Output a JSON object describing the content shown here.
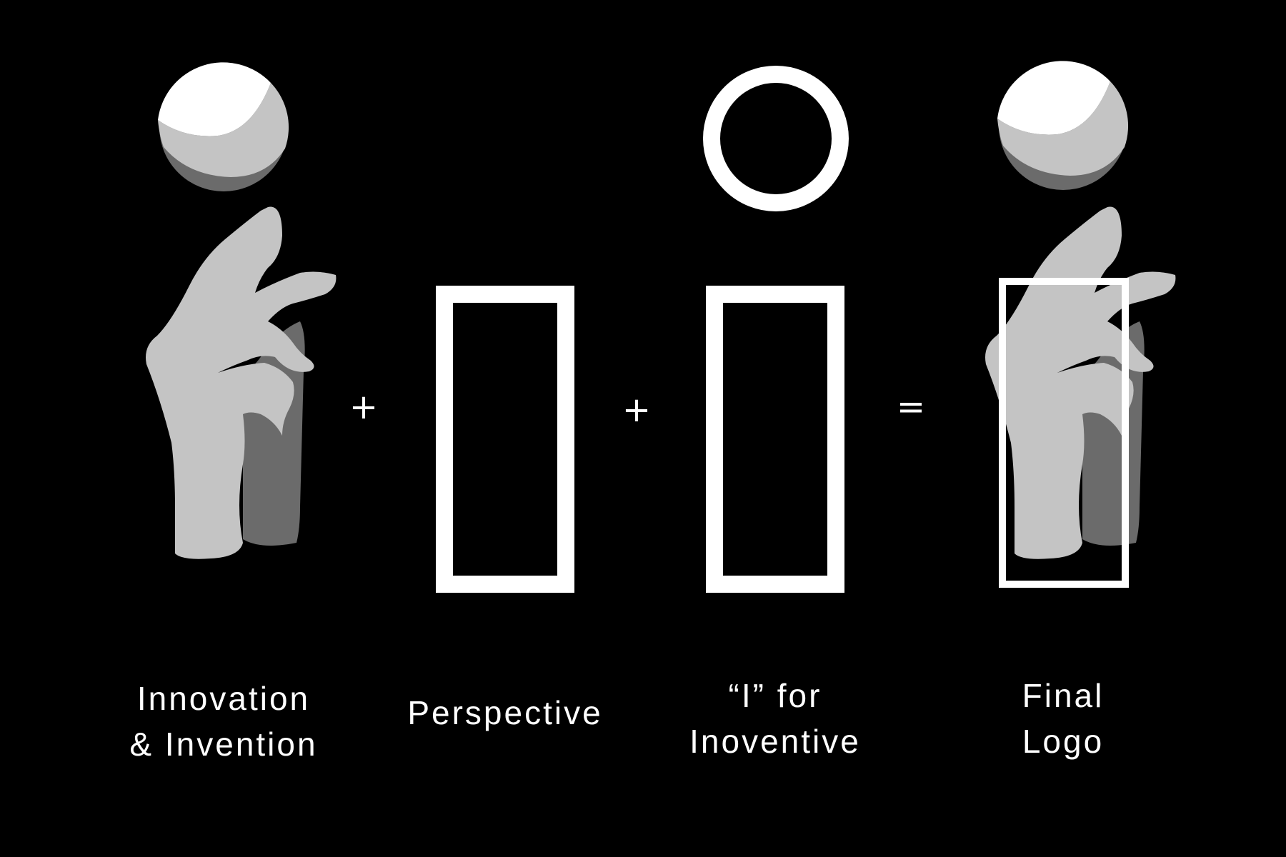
{
  "colors": {
    "background": "#000000",
    "foreground": "#ffffff",
    "hand_light": "#c4c4c4",
    "hand_shadow": "#6b6b6b",
    "sphere_highlight": "#ffffff",
    "sphere_mid": "#c4c4c4",
    "sphere_shadow": "#6b6b6b"
  },
  "items": [
    {
      "id": "innovation",
      "icon": "hand-balancing-sphere-icon",
      "caption_line1": "Innovation",
      "caption_line2": "& Invention"
    },
    {
      "id": "perspective",
      "icon": "outlined-rectangle-icon",
      "caption_line1": "Perspective",
      "caption_line2": ""
    },
    {
      "id": "letter-i",
      "icon": "letter-i-outline-icon",
      "caption_line1": "“I” for",
      "caption_line2": "Inoventive"
    },
    {
      "id": "final-logo",
      "icon": "final-logo-icon",
      "caption_line1": "Final",
      "caption_line2": "Logo"
    }
  ],
  "operators": {
    "plus_1": "+",
    "plus_2": "+",
    "equals": "="
  }
}
